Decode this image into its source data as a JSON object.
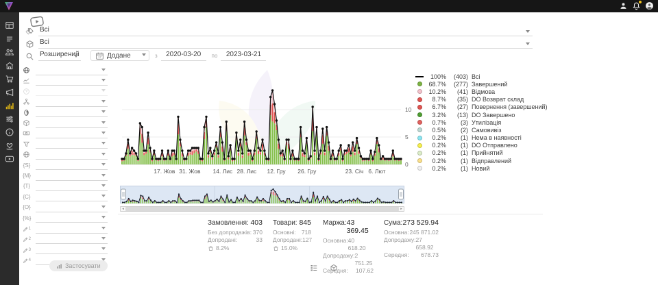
{
  "topbar": {
    "icons": [
      "user-icon",
      "bell-icon",
      "avatar-icon"
    ],
    "badge_color": "#f2c21b"
  },
  "sidebar": {
    "items": [
      {
        "name": "dashboard",
        "active": false
      },
      {
        "name": "orders",
        "active": false
      },
      {
        "name": "customers",
        "active": false
      },
      {
        "name": "store",
        "active": false
      },
      {
        "name": "cart",
        "active": false
      },
      {
        "name": "marketing",
        "active": false
      },
      {
        "name": "analytics",
        "active": true
      },
      {
        "name": "settings",
        "active": false
      },
      {
        "name": "info",
        "active": false
      },
      {
        "name": "partners",
        "active": false
      },
      {
        "name": "video",
        "active": false
      }
    ]
  },
  "filters_top": {
    "collection_value": "Всі",
    "product_value": "Всі",
    "search_mode": "Розширений",
    "date_field": "Додане",
    "from_label": "з",
    "date_from": "2020-03-20",
    "to_label": "по",
    "date_to": "2023-03-21"
  },
  "filter_panel": {
    "rows": [
      {
        "icon": "globe-icon",
        "kind": "svg",
        "shape": "globe",
        "dark": true,
        "dim": false
      },
      {
        "icon": "trend-icon",
        "kind": "svg",
        "shape": "trend",
        "dark": false,
        "dim": false
      },
      {
        "icon": "help-icon",
        "kind": "svg",
        "shape": "help",
        "dark": false,
        "dim": true
      },
      {
        "icon": "hierarchy-icon",
        "kind": "svg",
        "shape": "hierarchy",
        "dark": false,
        "dim": false
      },
      {
        "icon": "id-icon",
        "kind": "svg",
        "shape": "id",
        "dark": true,
        "dim": false
      },
      {
        "icon": "cube-icon",
        "kind": "svg",
        "shape": "cube",
        "dark": false,
        "dim": false
      },
      {
        "icon": "money-icon",
        "kind": "svg",
        "shape": "money",
        "dark": false,
        "dim": false
      },
      {
        "icon": "funnel-icon",
        "kind": "svg",
        "shape": "funnel",
        "dark": false,
        "dim": false
      },
      {
        "icon": "globe2-icon",
        "kind": "svg",
        "shape": "globe",
        "dark": false,
        "dim": false
      },
      {
        "icon": "utm-source-icon",
        "kind": "text",
        "text": "{S}",
        "dim": false
      },
      {
        "icon": "utm-medium-icon",
        "kind": "text",
        "text": "{M}",
        "dim": false
      },
      {
        "icon": "utm-term-icon",
        "kind": "text",
        "text": "{T}",
        "dim": false
      },
      {
        "icon": "utm-content-icon",
        "kind": "text",
        "text": "{C}",
        "dim": false
      },
      {
        "icon": "utm-campaign-icon",
        "kind": "text",
        "text": "{O}",
        "dim": false
      },
      {
        "icon": "utm-extra-icon",
        "kind": "text",
        "text": "{%}",
        "dim": false
      },
      {
        "icon": "pen1-icon",
        "kind": "pen",
        "num": "1",
        "dim": false
      },
      {
        "icon": "pen2-icon",
        "kind": "pen",
        "num": "2",
        "dim": false
      },
      {
        "icon": "pen3-icon",
        "kind": "pen",
        "num": "3",
        "dim": false
      },
      {
        "icon": "pen4-icon",
        "kind": "pen",
        "num": "4",
        "dim": false
      }
    ],
    "apply_label": "Застосувати"
  },
  "legend": {
    "items": [
      {
        "pct": "100%",
        "count": "(403)",
        "label": "Всі",
        "color": "#000000",
        "type": "line"
      },
      {
        "pct": "68.7%",
        "count": "(277)",
        "label": "Завершений",
        "color": "#7cb342",
        "type": "dot"
      },
      {
        "pct": "10.2%",
        "count": "(41)",
        "label": "Відмова",
        "color": "#f4c3cc",
        "type": "dot"
      },
      {
        "pct": "8.7%",
        "count": "(35)",
        "label": "DO Возврат склад",
        "color": "#e05451",
        "type": "dot"
      },
      {
        "pct": "6.7%",
        "count": "(27)",
        "label": "Повернення (завершений)",
        "color": "#e05451",
        "type": "dot"
      },
      {
        "pct": "3.2%",
        "count": "(13)",
        "label": "DO Завершено",
        "color": "#4f9e33",
        "type": "dot"
      },
      {
        "pct": "0.7%",
        "count": "(3)",
        "label": "Утилізація",
        "color": "#e2625f",
        "type": "dot"
      },
      {
        "pct": "0.5%",
        "count": "(2)",
        "label": "Самовивіз",
        "color": "#bcd9d3",
        "type": "dot"
      },
      {
        "pct": "0.2%",
        "count": "(1)",
        "label": "Нема в наявності",
        "color": "#8ae6f2",
        "type": "dot"
      },
      {
        "pct": "0.2%",
        "count": "(1)",
        "label": "DO Отправлено",
        "color": "#f7f04d",
        "type": "dot"
      },
      {
        "pct": "0.2%",
        "count": "(1)",
        "label": "Прийнятий",
        "color": "#dcedc8",
        "type": "dot"
      },
      {
        "pct": "0.2%",
        "count": "(1)",
        "label": "Відправлений",
        "color": "#fbe08a",
        "type": "dot"
      },
      {
        "pct": "0.2%",
        "count": "(1)",
        "label": "Новий",
        "color": "#f0f0f0",
        "type": "dot"
      }
    ]
  },
  "chart_data": {
    "type": "bar",
    "title": "",
    "xlabel": "",
    "ylabel": "",
    "ylim": [
      0,
      14
    ],
    "y_ticks": [
      0,
      5,
      10
    ],
    "x_axis_labels": [
      {
        "label": "17. Жов",
        "f": 0.152
      },
      {
        "label": "31. Жов",
        "f": 0.243
      },
      {
        "label": "14. Лис",
        "f": 0.361
      },
      {
        "label": "28. Лис",
        "f": 0.447
      },
      {
        "label": "12. Гру",
        "f": 0.553
      },
      {
        "label": "26. Гру",
        "f": 0.663
      },
      {
        "label": "23. Січ",
        "f": 0.833
      },
      {
        "label": "6. Лют",
        "f": 0.914
      }
    ],
    "series": [
      {
        "name": "Всі (разом, шт/день)",
        "values": [
          1,
          1,
          2,
          4.5,
          2,
          3,
          2.5,
          2,
          1,
          7.5,
          6.8,
          2.5,
          2.5,
          5.8,
          3,
          1,
          2.5,
          1,
          1,
          1,
          2.5,
          1,
          1,
          2.5,
          1,
          2.5,
          2.5,
          1,
          8.7,
          4.5,
          2.5,
          1,
          1,
          2.5,
          2.5,
          3,
          3,
          3,
          3,
          1,
          1,
          6.8,
          8.7,
          2,
          3,
          1.5,
          2.5,
          4,
          2,
          6.8,
          4,
          1,
          7.8,
          1.5,
          3.5,
          1,
          1,
          5.8,
          2.5,
          4.5,
          2,
          7.8,
          4.5,
          2.5,
          2.5,
          1,
          2.5,
          6,
          3,
          2.5,
          4.5,
          2.5,
          1,
          1,
          12.3,
          13.5,
          11,
          8,
          4.5,
          2,
          2.5,
          1,
          4.5,
          4.5,
          1,
          2.5,
          1,
          1,
          1,
          6.8,
          2.5,
          2,
          4.8,
          1,
          1.5,
          10.5,
          2.5,
          6.8,
          1,
          2.5,
          6.5,
          2.5,
          6.8,
          4,
          1,
          2.5,
          1,
          1,
          2.5,
          3.5,
          1,
          2.5,
          2.5,
          3.5,
          2,
          4,
          2.5,
          4.8,
          3,
          1.5,
          1,
          1,
          1,
          1,
          2.5,
          1,
          2.3,
          4.8,
          3.5,
          1,
          1.5,
          1,
          1,
          1,
          1,
          2.5,
          1,
          1,
          1,
          1
        ]
      }
    ],
    "bar_segment_colors": {
      "completed": "#85bf4b",
      "returned": "#e05451",
      "refused": "#f3c2ca"
    },
    "line_color": "#111111",
    "grid": true,
    "legend_position": "right",
    "navigator": true
  },
  "stats": {
    "columns": [
      {
        "title": "Замовлення:",
        "value": "403",
        "rows": [
          {
            "label": "Без допродажів:",
            "value": "370"
          },
          {
            "label": "Допродані:",
            "value": "33"
          }
        ],
        "badge": "8.2%"
      },
      {
        "title": "Товари:",
        "value": "845",
        "rows": [
          {
            "label": "Основні:",
            "value": "718"
          },
          {
            "label": "Допродані:",
            "value": "127"
          }
        ],
        "badge": "15.0%"
      },
      {
        "title": "Маржа:",
        "value": "43 369.45",
        "rows": [
          {
            "label": "Основна:",
            "value": "40 618.20"
          },
          {
            "label": "Допродажу:",
            "value": "2 751.25"
          },
          {
            "label": "Середня:",
            "value": "107.62"
          }
        ],
        "badge": null
      },
      {
        "title": "Сума:",
        "value": "273 529.94",
        "rows": [
          {
            "label": "Основна:",
            "value": "245 871.02"
          },
          {
            "label": "Допродажу:",
            "value": "27 658.92"
          },
          {
            "label": "Середня:",
            "value": "678.73"
          }
        ],
        "badge": null
      }
    ]
  },
  "footer": {
    "icons": [
      "list-view-icon",
      "product-view-icon"
    ]
  }
}
